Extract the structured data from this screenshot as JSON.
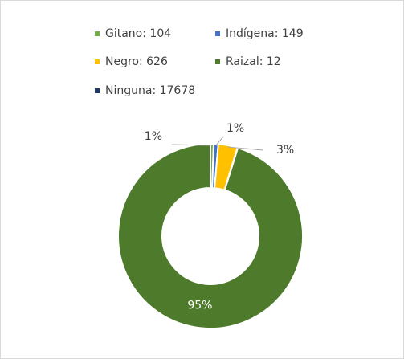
{
  "chart_data": {
    "type": "donut",
    "categories": [
      "Gitano: 104",
      "Indígena: 149",
      "Negro: 626",
      "Raizal: 12",
      "Ninguna: 17678"
    ],
    "values": [
      0.56,
      0.8,
      3.37,
      0.06,
      95.2
    ],
    "value_labels": [
      "1%",
      "1%",
      "3%",
      null,
      "95%"
    ],
    "colors": [
      "#70ad47",
      "#4472c4",
      "#ffc000",
      "#203864",
      "#4e7a2c"
    ],
    "legend_colors": [
      "#70ad47",
      "#4472c4",
      "#ffc000",
      "#4e7a2c",
      "#203864"
    ],
    "legend": "top"
  }
}
